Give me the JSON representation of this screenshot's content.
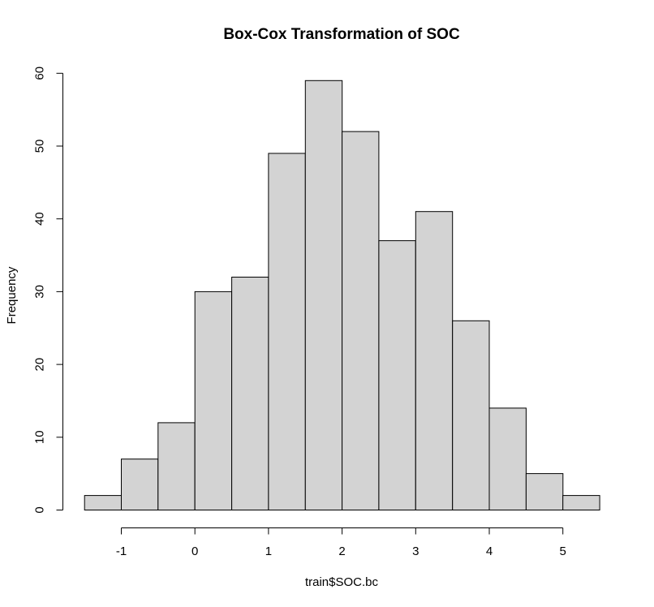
{
  "chart_data": {
    "type": "bar",
    "title": "Box-Cox Transformation of SOC",
    "xlabel": "train$SOC.bc",
    "ylabel": "Frequency",
    "bin_width": 0.5,
    "bins": [
      {
        "start": -1.5,
        "end": -1.0,
        "count": 2
      },
      {
        "start": -1.0,
        "end": -0.5,
        "count": 7
      },
      {
        "start": -0.5,
        "end": 0.0,
        "count": 12
      },
      {
        "start": 0.0,
        "end": 0.5,
        "count": 30
      },
      {
        "start": 0.5,
        "end": 1.0,
        "count": 32
      },
      {
        "start": 1.0,
        "end": 1.5,
        "count": 49
      },
      {
        "start": 1.5,
        "end": 2.0,
        "count": 59
      },
      {
        "start": 2.0,
        "end": 2.5,
        "count": 52
      },
      {
        "start": 2.5,
        "end": 3.0,
        "count": 37
      },
      {
        "start": 3.0,
        "end": 3.5,
        "count": 41
      },
      {
        "start": 3.5,
        "end": 4.0,
        "count": 26
      },
      {
        "start": 4.0,
        "end": 4.5,
        "count": 14
      },
      {
        "start": 4.5,
        "end": 5.0,
        "count": 5
      },
      {
        "start": 5.0,
        "end": 5.5,
        "count": 2
      }
    ],
    "xlim": [
      -1.5,
      5.5
    ],
    "ylim": [
      0,
      60
    ],
    "x_ticks": [
      -1,
      0,
      1,
      2,
      3,
      4,
      5
    ],
    "x_tick_labels": [
      "-1",
      "0",
      "1",
      "2",
      "3",
      "4",
      "5"
    ],
    "y_ticks": [
      0,
      10,
      20,
      30,
      40,
      50,
      60
    ],
    "y_tick_labels": [
      "0",
      "10",
      "20",
      "30",
      "40",
      "50",
      "60"
    ],
    "bar_fill": "#d3d3d3",
    "grid": false,
    "legend": "none"
  }
}
